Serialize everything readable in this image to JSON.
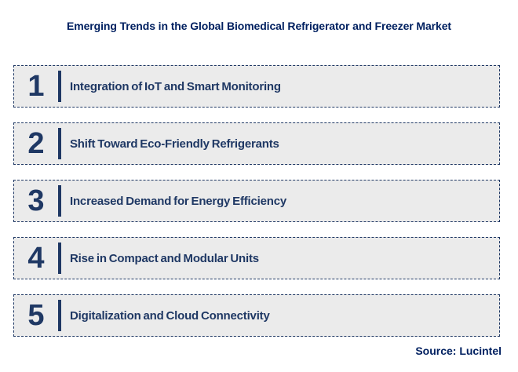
{
  "title": "Emerging Trends in the Global Biomedical Refrigerator and Freezer Market",
  "trends": [
    {
      "number": "1",
      "label": "Integration of IoT and Smart Monitoring"
    },
    {
      "number": "2",
      "label": "Shift Toward Eco-Friendly Refrigerants"
    },
    {
      "number": "3",
      "label": "Increased Demand for Energy Efficiency"
    },
    {
      "number": "4",
      "label": "Rise in Compact and Modular Units"
    },
    {
      "number": "5",
      "label": "Digitalization and Cloud Connectivity"
    }
  ],
  "source": "Source: Lucintel",
  "colors": {
    "navy": "#1f3864",
    "title_navy": "#002060",
    "row_background": "#ebebeb",
    "page_background": "#ffffff"
  }
}
